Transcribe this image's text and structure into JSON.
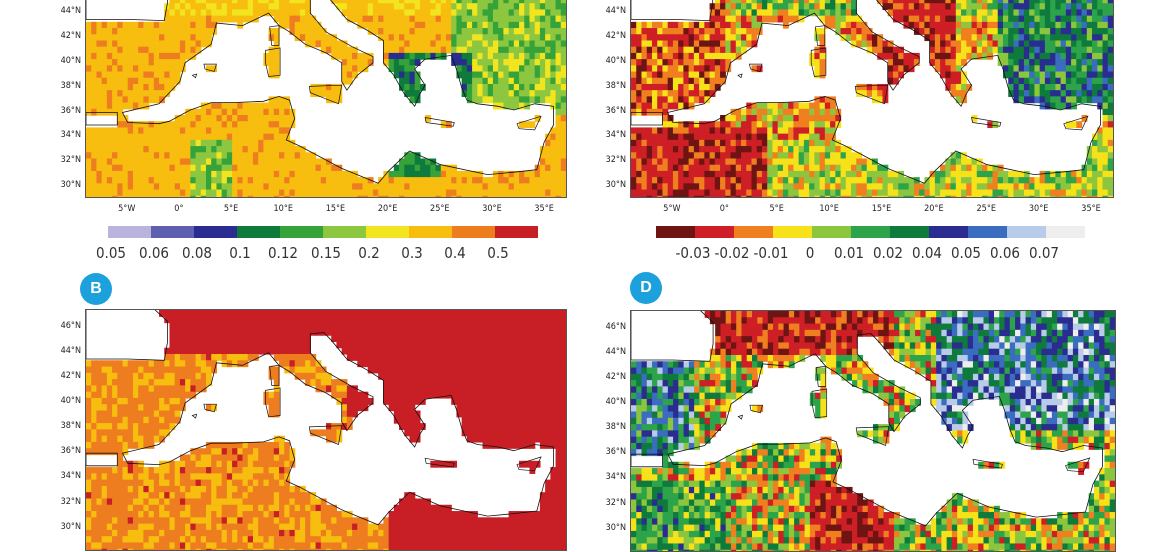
{
  "panels": [
    {
      "id": "A",
      "badge": "",
      "type": "ratio",
      "lat": [
        "44°N",
        "42°N",
        "40°N",
        "38°N",
        "36°N",
        "34°N",
        "32°N",
        "30°N"
      ],
      "lon": [
        "5°W",
        "0°",
        "5°E",
        "10°E",
        "15°E",
        "20°E",
        "25°E",
        "30°E",
        "35°E"
      ]
    },
    {
      "id": "C",
      "badge": "",
      "type": "trend",
      "lat": [
        "44°N",
        "42°N",
        "40°N",
        "38°N",
        "36°N",
        "34°N",
        "32°N",
        "30°N"
      ],
      "lon": [
        "5°W",
        "0°",
        "5°E",
        "10°E",
        "15°E",
        "20°E",
        "25°E",
        "30°E",
        "35°E"
      ]
    },
    {
      "id": "B",
      "badge": "B",
      "type": "heat",
      "lat": [
        "46°N",
        "44°N",
        "42°N",
        "40°N",
        "38°N",
        "36°N",
        "34°N",
        "32°N",
        "30°N"
      ],
      "lon": []
    },
    {
      "id": "D",
      "badge": "D",
      "type": "change",
      "lat": [
        "46°N",
        "44°N",
        "42°N",
        "40°N",
        "38°N",
        "36°N",
        "34°N",
        "32°N",
        "30°N"
      ],
      "lon": []
    }
  ],
  "colorbar_left": {
    "labels": [
      "0.05",
      "0.06",
      "0.08",
      "0.1",
      "0.12",
      "0.15",
      "0.2",
      "0.3",
      "0.4",
      "0.5"
    ],
    "colors": [
      "#b9b3dd",
      "#5e5fae",
      "#2a2d8f",
      "#0e7a3c",
      "#36a33a",
      "#8dc63f",
      "#f2e51f",
      "#f7bd0f",
      "#ee7d20",
      "#c81e25"
    ]
  },
  "colorbar_right": {
    "labels": [
      "-0.03",
      "-0.02",
      "-0.01",
      "0",
      "0.01",
      "0.02",
      "0.04",
      "0.05",
      "0.06",
      "0.07"
    ],
    "colors": [
      "#6e1412",
      "#cd1f25",
      "#ef7f1f",
      "#f7e21a",
      "#8cc63f",
      "#2da34a",
      "#0e7a3c",
      "#2a2d8f",
      "#3a6cc0",
      "#b8ccea",
      "#eeeeee"
    ]
  }
}
